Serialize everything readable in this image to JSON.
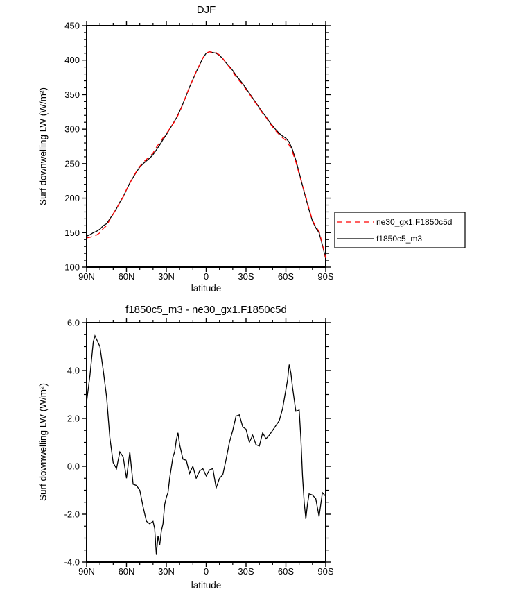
{
  "page": {
    "background": "#ffffff",
    "axis_color": "#000000"
  },
  "chart_data": [
    {
      "type": "line",
      "title": "DJF",
      "xlabel": "latitude",
      "ylabel": "Surf downwelling LW (W/m²)",
      "xlim": [
        90,
        -90
      ],
      "ylim": [
        100,
        450
      ],
      "xticks": [
        90,
        60,
        30,
        0,
        -30,
        -60,
        -90
      ],
      "xtick_labels": [
        "90N",
        "60N",
        "30N",
        "0",
        "30S",
        "60S",
        "90S"
      ],
      "yticks": [
        100,
        150,
        200,
        250,
        300,
        350,
        400,
        450
      ],
      "ytick_labels": [
        "100",
        "150",
        "200",
        "250",
        "300",
        "350",
        "400",
        "450"
      ],
      "x_minor_step": 10,
      "y_minor_step": 10,
      "grid": false,
      "legend": {
        "position": "outside-right-bottom",
        "entries": [
          {
            "label": "ne30_gx1.F1850c5d",
            "color": "#ff0000",
            "line_style": "dashed"
          },
          {
            "label": "f1850c5_m3",
            "color": "#000000",
            "line_style": "solid"
          }
        ]
      },
      "x": [
        90,
        87.5,
        85,
        82.5,
        80,
        77.5,
        75,
        72.5,
        70,
        67.5,
        65,
        62.5,
        60,
        57.5,
        55,
        52.5,
        50,
        47.5,
        45,
        42.5,
        40,
        37.5,
        35,
        32.5,
        30,
        27.5,
        25,
        22.5,
        20,
        17.5,
        15,
        12.5,
        10,
        7.5,
        5,
        2.5,
        0,
        -2.5,
        -5,
        -7.5,
        -10,
        -12.5,
        -15,
        -17.5,
        -20,
        -22.5,
        -25,
        -27.5,
        -30,
        -32.5,
        -35,
        -37.5,
        -40,
        -42.5,
        -45,
        -47.5,
        -50,
        -52.5,
        -55,
        -57.5,
        -60,
        -62.5,
        -65,
        -67.5,
        -70,
        -72.5,
        -75,
        -77.5,
        -80,
        -82.5,
        -85,
        -87.5,
        -90
      ],
      "series": [
        {
          "name": "f1850c5_m3",
          "color": "#000000",
          "line_style": "solid",
          "values": [
            145,
            147,
            150,
            152,
            155,
            160,
            163,
            170,
            177,
            185,
            194,
            202,
            212,
            222,
            230,
            238,
            245,
            250,
            254,
            258,
            263,
            270,
            277,
            285,
            292,
            300,
            308,
            316,
            326,
            337,
            349,
            361,
            372,
            383,
            393,
            403,
            410,
            412,
            411,
            410,
            407,
            402,
            396,
            391,
            385,
            378,
            372,
            366,
            359,
            352,
            345,
            338,
            331,
            324,
            318,
            311,
            305,
            299,
            294,
            290,
            287,
            281,
            270,
            255,
            237,
            218,
            200,
            183,
            167,
            157,
            150,
            132,
            112
          ]
        },
        {
          "name": "ne30_gx1.F1850c5d",
          "color": "#ff0000",
          "line_style": "dashed",
          "values": [
            142.3,
            143.2,
            144.8,
            146.6,
            149.8,
            156,
            160.1,
            168.8,
            176.9,
            185.1,
            193.4,
            201.6,
            212.5,
            221.4,
            230.8,
            238.8,
            246,
            251.7,
            256.3,
            260.4,
            265.3,
            273.7,
            280.3,
            287.4,
            293.3,
            300.5,
            307.6,
            314.7,
            325.1,
            336.7,
            348.8,
            361.3,
            372,
            383.5,
            393.2,
            403.1,
            410.4,
            412.2,
            411.1,
            410.9,
            407.5,
            402.4,
            395.7,
            390,
            383.5,
            375.9,
            369.9,
            364.4,
            357.5,
            351,
            343.7,
            337.1,
            330.2,
            322.6,
            316.9,
            309.7,
            303.5,
            297.3,
            292.1,
            287.6,
            283.8,
            276.8,
            266.7,
            252.7,
            234.7,
            218.4,
            202.2,
            184.2,
            168.2,
            158.4,
            152.1,
            133.1,
            113.3
          ]
        }
      ]
    },
    {
      "type": "line",
      "title": "f1850c5_m3 - ne30_gx1.F1850c5d",
      "xlabel": "latitude",
      "ylabel": "Surf downwelling LW (W/m²)",
      "xlim": [
        90,
        -90
      ],
      "ylim": [
        -4.0,
        6.0
      ],
      "xticks": [
        90,
        60,
        30,
        0,
        -30,
        -60,
        -90
      ],
      "xtick_labels": [
        "90N",
        "60N",
        "30N",
        "0",
        "30S",
        "60S",
        "90S"
      ],
      "yticks": [
        -4.0,
        -2.0,
        0.0,
        2.0,
        4.0,
        6.0
      ],
      "ytick_labels": [
        "-4.0",
        "-2.0",
        "0.0",
        "2.0",
        "4.0",
        "6.0"
      ],
      "x_minor_step": 10,
      "y_minor_step": 0.5,
      "grid": false,
      "x": [
        90,
        87.5,
        85,
        83.75,
        82.5,
        80,
        77.5,
        75,
        72.5,
        70,
        67.5,
        65,
        62.5,
        60,
        57.5,
        55,
        52.5,
        50,
        47.5,
        45,
        42.5,
        40,
        38.75,
        37.5,
        36.25,
        35,
        33.75,
        32.5,
        31.25,
        30,
        28.75,
        27.5,
        25,
        23.75,
        22.5,
        21.25,
        20,
        17.5,
        15,
        12.5,
        10,
        7.5,
        5,
        2.5,
        0,
        -2.5,
        -5,
        -7.5,
        -10,
        -12.5,
        -15,
        -17.5,
        -20,
        -22.5,
        -25,
        -27.5,
        -30,
        -32.5,
        -35,
        -37.5,
        -40,
        -42.5,
        -45,
        -47.5,
        -50,
        -52.5,
        -55,
        -57.5,
        -60,
        -61.25,
        -62.5,
        -63.75,
        -65,
        -67.5,
        -70,
        -71.25,
        -72.5,
        -73.75,
        -75,
        -76.25,
        -77.5,
        -80,
        -82.5,
        -85,
        -87.5,
        -90
      ],
      "series": [
        {
          "name": "f1850c5_m3 - ne30_gx1.F1850c5d",
          "color": "#000000",
          "line_style": "solid",
          "values": [
            2.7,
            3.8,
            5.2,
            5.45,
            5.3,
            5.0,
            4.0,
            2.9,
            1.2,
            0.15,
            -0.1,
            0.6,
            0.4,
            -0.5,
            0.6,
            -0.75,
            -0.8,
            -1.0,
            -1.7,
            -2.3,
            -2.4,
            -2.3,
            -2.6,
            -3.7,
            -2.9,
            -3.3,
            -2.7,
            -2.4,
            -1.6,
            -1.3,
            -1.1,
            -0.5,
            0.4,
            0.6,
            1.1,
            1.4,
            0.9,
            0.3,
            0.25,
            -0.3,
            0.0,
            -0.5,
            -0.2,
            -0.1,
            -0.4,
            -0.15,
            -0.1,
            -0.9,
            -0.5,
            -0.35,
            0.3,
            1.0,
            1.5,
            2.1,
            2.15,
            1.65,
            1.55,
            1.0,
            1.3,
            0.9,
            0.85,
            1.4,
            1.15,
            1.3,
            1.5,
            1.7,
            1.9,
            2.4,
            3.2,
            3.6,
            4.25,
            3.9,
            3.3,
            2.3,
            2.35,
            1.2,
            -0.4,
            -1.5,
            -2.2,
            -1.6,
            -1.15,
            -1.2,
            -1.35,
            -2.1,
            -1.1,
            -1.25
          ]
        }
      ]
    }
  ]
}
